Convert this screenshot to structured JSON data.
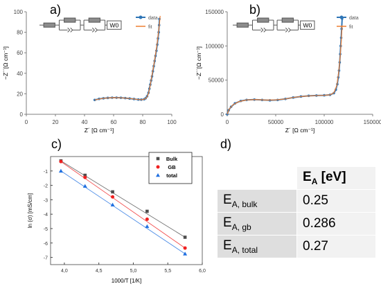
{
  "chart_data": [
    {
      "panel": "a)",
      "type": "line",
      "xlabel": "Z´ [Ω cm⁻¹]",
      "ylabel": "−Z´´[Ω cm⁻¹]",
      "xlim": [
        0,
        100
      ],
      "ylim": [
        0,
        100
      ],
      "xticks": [
        "0",
        "20",
        "40",
        "60",
        "80",
        "100"
      ],
      "yticks": [
        "0",
        "20",
        "40",
        "60",
        "80",
        "100"
      ],
      "legend": [
        "data",
        "fit"
      ],
      "legend_placement": "top-right",
      "circuit_label": "W0",
      "colors": {
        "data": "#2e75b6",
        "fit": "#ed7d31"
      },
      "series": [
        {
          "name": "data",
          "x": [
            47,
            50,
            53,
            56,
            59,
            62,
            65,
            68,
            71,
            74,
            77,
            79,
            81,
            82,
            83,
            84,
            84.6,
            85.2,
            85.8,
            86.4,
            87,
            87.6,
            88.2,
            88.8,
            89.4,
            90,
            90.5,
            91,
            91.3,
            91.5
          ],
          "y": [
            14,
            15,
            15.6,
            16,
            16.2,
            16.2,
            16.1,
            15.8,
            15.4,
            14.9,
            14.4,
            14.3,
            14.7,
            15.6,
            17.5,
            21,
            25,
            29,
            33,
            37,
            42,
            47,
            52,
            57,
            62,
            68,
            74,
            80,
            87,
            93
          ]
        },
        {
          "name": "fit",
          "x": [
            47,
            53,
            59,
            65,
            71,
            77,
            80,
            82,
            83,
            84,
            85,
            86,
            87,
            88,
            89,
            90,
            91,
            91.5,
            92
          ],
          "y": [
            14,
            15.6,
            16.2,
            16.1,
            15.4,
            14.4,
            14.3,
            15.3,
            17,
            20.5,
            27,
            35,
            43,
            51,
            60,
            70,
            82,
            88,
            96
          ]
        }
      ]
    },
    {
      "panel": "b)",
      "type": "line",
      "xlabel": "Z´ [Ω cm⁻¹]",
      "ylabel": "−Z´´[Ω cm⁻¹]",
      "xlim": [
        0,
        150000
      ],
      "ylim": [
        0,
        150000
      ],
      "xticks": [
        "0",
        "50000",
        "100000",
        "150000"
      ],
      "yticks": [
        "0",
        "50000",
        "100000",
        "150000"
      ],
      "legend": [
        "data",
        "fit"
      ],
      "legend_placement": "top-right",
      "circuit_label": "W0",
      "colors": {
        "data": "#2e75b6",
        "fit": "#ed7d31"
      },
      "series": [
        {
          "name": "data",
          "x": [
            0,
            1500,
            4000,
            8000,
            14000,
            20000,
            28000,
            36000,
            44000,
            52000,
            60000,
            68000,
            76000,
            84000,
            92000,
            100000,
            106000,
            110000,
            112000,
            113500,
            114500,
            115300,
            116000,
            116500,
            117000,
            117500,
            118000,
            118500
          ],
          "y": [
            0,
            6000,
            11000,
            16000,
            19500,
            21000,
            21500,
            21000,
            20500,
            21000,
            22500,
            24500,
            26000,
            27000,
            27500,
            27800,
            28500,
            31000,
            36000,
            44000,
            54000,
            64000,
            76000,
            88000,
            100000,
            112000,
            125000,
            140000
          ]
        },
        {
          "name": "fit",
          "x": [
            0,
            2000,
            6000,
            12000,
            20000,
            30000,
            40000,
            50000,
            60000,
            70000,
            80000,
            90000,
            100000,
            106000,
            110000,
            113000,
            115000,
            116500,
            117500,
            118500
          ],
          "y": [
            0,
            7500,
            14000,
            18500,
            21000,
            21500,
            20800,
            21000,
            22500,
            25000,
            26500,
            27300,
            27800,
            28500,
            31500,
            42000,
            62000,
            85000,
            105000,
            130000
          ]
        }
      ]
    },
    {
      "panel": "c)",
      "type": "scatter",
      "xlabel": "1000/T [1/K]",
      "ylabel": "ln (σ) [mS/cm]",
      "xlim": [
        3.8,
        6.0
      ],
      "ylim": [
        -7.5,
        0
      ],
      "xticks": [
        "4,0",
        "4,5",
        "5,0",
        "5,5",
        "6,0"
      ],
      "yticks": [
        "-1",
        "-2",
        "-3",
        "-4",
        "-5",
        "-6",
        "-7"
      ],
      "legend_placement": "top-right",
      "colors": {
        "Bulk": "#4d4d4d",
        "GB": "#f02020",
        "total": "#1f6fe0"
      },
      "series": [
        {
          "name": "Bulk",
          "x": [
            3.95,
            4.3,
            4.7,
            5.2,
            5.75
          ],
          "y": [
            -0.3,
            -1.3,
            -2.45,
            -3.8,
            -5.6
          ]
        },
        {
          "name": "GB",
          "x": [
            3.95,
            4.3,
            4.7,
            5.2,
            5.75
          ],
          "y": [
            -0.35,
            -1.45,
            -2.8,
            -4.35,
            -6.35
          ]
        },
        {
          "name": "total",
          "x": [
            3.95,
            4.3,
            4.7,
            5.2,
            5.75
          ],
          "y": [
            -1.0,
            -2.05,
            -3.35,
            -4.85,
            -6.75
          ]
        }
      ]
    },
    {
      "panel": "d)",
      "type": "table",
      "header": {
        "symbol": "E",
        "sub": "A",
        "unit": " [eV]"
      },
      "rows": [
        {
          "symbol": "E",
          "sub": "A, bulk",
          "value": "0.25"
        },
        {
          "symbol": "E",
          "sub": "A, gb",
          "value": "0.286"
        },
        {
          "symbol": "E",
          "sub": "A, total",
          "value": "0.27"
        }
      ]
    }
  ]
}
